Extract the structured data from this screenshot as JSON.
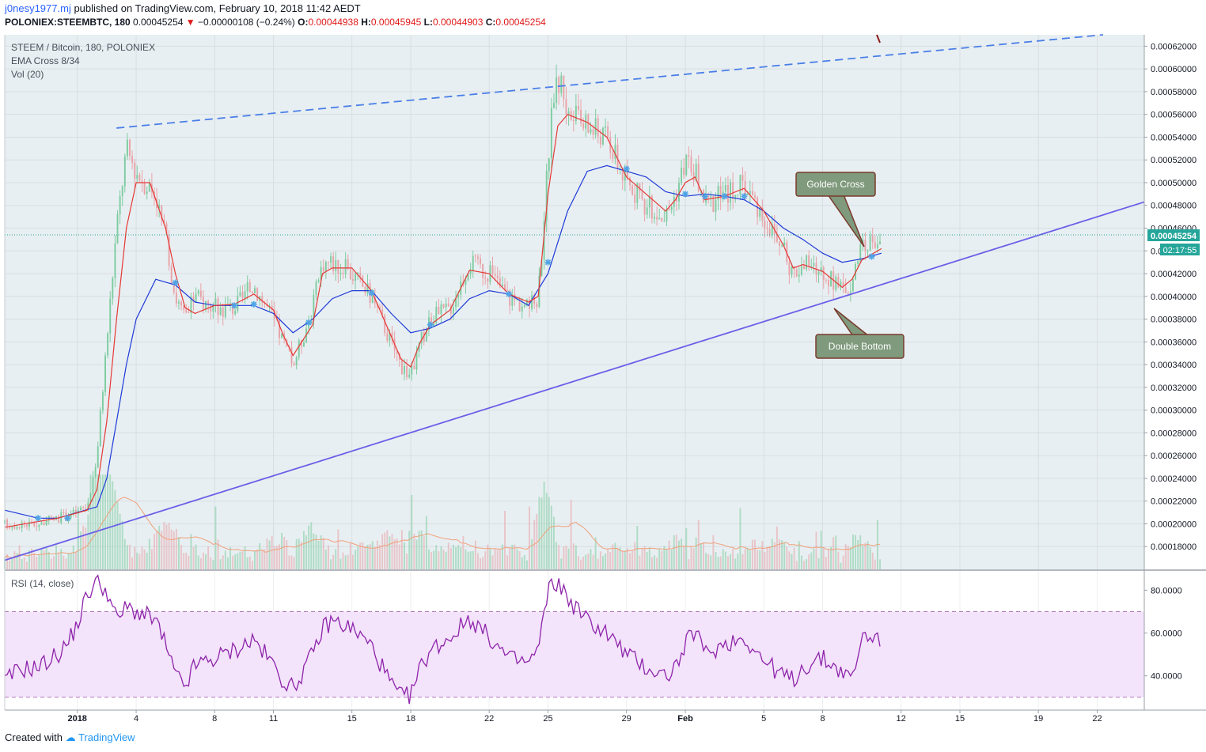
{
  "header": {
    "user": "j0nesy1977.mj",
    "published": "published on TradingView.com, February 10, 2018 11:42 AEDT",
    "symbol": "POLONIEX:STEEMBTC, 180",
    "last": "0.00045254",
    "change": "−0.00000108 (−0.24%)",
    "o_label": "O:",
    "o": "0.00044938",
    "h_label": "H:",
    "h": "0.00045945",
    "l_label": "L:",
    "l": "0.00044903",
    "c_label": "C:",
    "c": "0.00045254"
  },
  "legend": {
    "title": "STEEM / Bitcoin, 180, POLONIEX",
    "ema": "EMA Cross 8/34",
    "vol": "Vol (20)",
    "rsi": "RSI (14, close)"
  },
  "price_tag": "0.00045254",
  "time_tag": "02:17:55",
  "annotations": {
    "golden": "Golden Cross",
    "double": "Double Bottom"
  },
  "footer": {
    "created": "Created with",
    "brand": "TradingView"
  },
  "colors": {
    "up": "#7dcca0",
    "down": "#e8a3a8",
    "ema_fast": "#e53935",
    "ema_slow": "#1e3ad9",
    "rsi": "#8e24aa",
    "trend": "#6a5fe8",
    "callout": "#7f9a7c"
  },
  "chart_data": {
    "type": "candlestick",
    "price_axis": {
      "ylim": [
        0.00016,
        0.00063
      ],
      "ticks": [
        "0.00062000",
        "0.00060000",
        "0.00058000",
        "0.00056000",
        "0.00054000",
        "0.00052000",
        "0.00050000",
        "0.00048000",
        "0.00046000",
        "0.00044000",
        "0.00042000",
        "0.00040000",
        "0.00038000",
        "0.00036000",
        "0.00034000",
        "0.00032000",
        "0.00030000",
        "0.00028000",
        "0.00026000",
        "0.00024000",
        "0.00022000",
        "0.00020000",
        "0.00018000"
      ]
    },
    "rsi_axis": {
      "ylim": [
        24,
        89
      ],
      "ticks": [
        "80.0000",
        "60.0000",
        "40.0000"
      ],
      "band": [
        30,
        70
      ]
    },
    "x_axis": {
      "ticks": [
        "2018",
        "4",
        "8",
        "11",
        "15",
        "18",
        "22",
        "25",
        "29",
        "Feb",
        "5",
        "8",
        "12",
        "15",
        "19",
        "22"
      ],
      "tick_day": [
        1,
        4,
        8,
        11,
        15,
        18,
        22,
        25,
        29,
        32,
        36,
        39,
        43,
        46,
        50,
        53
      ],
      "xlim_day": [
        -2.7,
        55.4
      ]
    },
    "close_path": [
      [
        -2.7,
        0.0002
      ],
      [
        -1,
        0.0002
      ],
      [
        0,
        0.000205
      ],
      [
        1,
        0.00021
      ],
      [
        1.5,
        0.000215
      ],
      [
        2,
        0.00026
      ],
      [
        2.5,
        0.00036
      ],
      [
        3,
        0.00046
      ],
      [
        3.5,
        0.00053
      ],
      [
        4,
        0.00051
      ],
      [
        4.5,
        0.0005
      ],
      [
        5,
        0.00049
      ],
      [
        5.5,
        0.00045
      ],
      [
        6,
        0.0004
      ],
      [
        6.5,
        0.00038
      ],
      [
        7,
        0.0004
      ],
      [
        8,
        0.00039
      ],
      [
        9,
        0.00039
      ],
      [
        10,
        0.00041
      ],
      [
        11,
        0.00038
      ],
      [
        11.5,
        0.00036
      ],
      [
        12,
        0.00034
      ],
      [
        13,
        0.00039
      ],
      [
        13.5,
        0.00043
      ],
      [
        14,
        0.00043
      ],
      [
        15,
        0.00042
      ],
      [
        16,
        0.0004
      ],
      [
        17,
        0.00036
      ],
      [
        17.5,
        0.00034
      ],
      [
        18,
        0.00033
      ],
      [
        18.5,
        0.00036
      ],
      [
        19,
        0.00038
      ],
      [
        20,
        0.00039
      ],
      [
        21,
        0.00043
      ],
      [
        22,
        0.00042
      ],
      [
        23,
        0.0004
      ],
      [
        24,
        0.00039
      ],
      [
        24.5,
        0.0004
      ],
      [
        25,
        0.00052
      ],
      [
        25.3,
        0.00058
      ],
      [
        25.7,
        0.00059
      ],
      [
        26,
        0.00056
      ],
      [
        27,
        0.00055
      ],
      [
        28,
        0.00054
      ],
      [
        29,
        0.0005
      ],
      [
        30,
        0.00048
      ],
      [
        31,
        0.00047
      ],
      [
        31.5,
        0.00049
      ],
      [
        32,
        0.00052
      ],
      [
        32.5,
        0.00051
      ],
      [
        33,
        0.00048
      ],
      [
        34,
        0.00049
      ],
      [
        35,
        0.0005
      ],
      [
        36,
        0.00047
      ],
      [
        37,
        0.00044
      ],
      [
        37.5,
        0.00042
      ],
      [
        38,
        0.00043
      ],
      [
        39,
        0.00042
      ],
      [
        40,
        0.000405
      ],
      [
        40.5,
        0.000415
      ],
      [
        41,
        0.00044
      ],
      [
        41.5,
        0.00045
      ],
      [
        42,
        0.000452
      ]
    ],
    "series": [
      {
        "name": "EMA 8",
        "values": [
          [
            -2.7,
            0.000197
          ],
          [
            0,
            0.000205
          ],
          [
            1.5,
            0.000212
          ],
          [
            2,
            0.00023
          ],
          [
            2.5,
            0.00029
          ],
          [
            3,
            0.00038
          ],
          [
            3.5,
            0.00046
          ],
          [
            4,
            0.0005
          ],
          [
            4.7,
            0.0005
          ],
          [
            5.5,
            0.00046
          ],
          [
            6,
            0.00042
          ],
          [
            6.5,
            0.00039
          ],
          [
            7,
            0.000385
          ],
          [
            8,
            0.000392
          ],
          [
            9,
            0.000393
          ],
          [
            10,
            0.000402
          ],
          [
            11,
            0.000388
          ],
          [
            11.5,
            0.000366
          ],
          [
            12,
            0.000348
          ],
          [
            13,
            0.000375
          ],
          [
            13.5,
            0.00042
          ],
          [
            14,
            0.000425
          ],
          [
            15,
            0.000425
          ],
          [
            16,
            0.000405
          ],
          [
            17,
            0.000365
          ],
          [
            17.5,
            0.000345
          ],
          [
            18,
            0.000338
          ],
          [
            18.5,
            0.00036
          ],
          [
            19,
            0.000375
          ],
          [
            20,
            0.000388
          ],
          [
            21,
            0.000423
          ],
          [
            22,
            0.00042
          ],
          [
            23,
            0.000402
          ],
          [
            24,
            0.000395
          ],
          [
            24.5,
            0.0004
          ],
          [
            25,
            0.00049
          ],
          [
            25.5,
            0.00055
          ],
          [
            26,
            0.00056
          ],
          [
            27,
            0.000553
          ],
          [
            28,
            0.00054
          ],
          [
            29,
            0.000505
          ],
          [
            30,
            0.00049
          ],
          [
            31,
            0.000475
          ],
          [
            31.5,
            0.000485
          ],
          [
            32,
            0.0005
          ],
          [
            32.5,
            0.000505
          ],
          [
            33,
            0.000485
          ],
          [
            34,
            0.000488
          ],
          [
            35,
            0.000495
          ],
          [
            36,
            0.000475
          ],
          [
            37,
            0.000445
          ],
          [
            37.5,
            0.000425
          ],
          [
            38,
            0.000428
          ],
          [
            39,
            0.000422
          ],
          [
            40,
            0.000408
          ],
          [
            40.5,
            0.000415
          ],
          [
            41,
            0.000432
          ],
          [
            42,
            0.000442
          ]
        ]
      },
      {
        "name": "EMA 34",
        "values": [
          [
            -2.7,
            0.000212
          ],
          [
            -1,
            0.000205
          ],
          [
            0,
            0.000205
          ],
          [
            1,
            0.00021
          ],
          [
            2,
            0.000215
          ],
          [
            2.5,
            0.00024
          ],
          [
            3,
            0.00029
          ],
          [
            3.5,
            0.00034
          ],
          [
            4,
            0.00038
          ],
          [
            5,
            0.000415
          ],
          [
            6,
            0.00041
          ],
          [
            7,
            0.000395
          ],
          [
            8,
            0.000392
          ],
          [
            9,
            0.000392
          ],
          [
            10,
            0.000392
          ],
          [
            11,
            0.000385
          ],
          [
            12,
            0.000368
          ],
          [
            13,
            0.00038
          ],
          [
            14,
            0.000398
          ],
          [
            15,
            0.000405
          ],
          [
            16,
            0.000405
          ],
          [
            17,
            0.000385
          ],
          [
            18,
            0.000368
          ],
          [
            19,
            0.000372
          ],
          [
            20,
            0.00038
          ],
          [
            21,
            0.000398
          ],
          [
            22,
            0.000405
          ],
          [
            23,
            0.000402
          ],
          [
            24,
            0.000392
          ],
          [
            25,
            0.00042
          ],
          [
            26,
            0.000475
          ],
          [
            27,
            0.00051
          ],
          [
            28,
            0.000515
          ],
          [
            29,
            0.00051
          ],
          [
            30,
            0.000505
          ],
          [
            31,
            0.000492
          ],
          [
            32,
            0.000488
          ],
          [
            33,
            0.00049
          ],
          [
            34,
            0.000488
          ],
          [
            35,
            0.000485
          ],
          [
            36,
            0.000475
          ],
          [
            37,
            0.00046
          ],
          [
            38,
            0.00045
          ],
          [
            39,
            0.000438
          ],
          [
            40,
            0.00043
          ],
          [
            41,
            0.000433
          ],
          [
            42,
            0.000438
          ]
        ]
      }
    ],
    "cross_markers": [
      [
        -1,
        0.000205
      ],
      [
        0.5,
        0.000205
      ],
      [
        6,
        0.000412
      ],
      [
        9,
        0.000392
      ],
      [
        10,
        0.000393
      ],
      [
        12.8,
        0.000377
      ],
      [
        16,
        0.000403
      ],
      [
        19,
        0.000375
      ],
      [
        23,
        0.000402
      ],
      [
        25,
        0.00043
      ],
      [
        29,
        0.000512
      ],
      [
        32,
        0.00049
      ],
      [
        33,
        0.000488
      ],
      [
        34,
        0.000488
      ],
      [
        35,
        0.000488
      ],
      [
        41.5,
        0.000435
      ]
    ],
    "trend_lines": [
      {
        "style": "solid",
        "from": [
          -2.7,
          0.000168
        ],
        "to": [
          55.4,
          0.000483
        ]
      },
      {
        "style": "dashed",
        "from": [
          3,
          0.000548
        ],
        "to": [
          53.3,
          0.00063
        ]
      }
    ],
    "rsi_path": [
      [
        -2.7,
        37
      ],
      [
        -2,
        43
      ],
      [
        -1,
        44
      ],
      [
        0,
        50
      ],
      [
        0.5,
        55
      ],
      [
        1,
        64
      ],
      [
        1.5,
        78
      ],
      [
        2,
        84
      ],
      [
        2.5,
        80
      ],
      [
        3,
        66
      ],
      [
        3.5,
        72
      ],
      [
        4,
        70
      ],
      [
        5,
        66
      ],
      [
        5.5,
        54
      ],
      [
        6,
        40
      ],
      [
        6.5,
        35
      ],
      [
        7,
        45
      ],
      [
        8,
        48
      ],
      [
        9,
        52
      ],
      [
        10,
        57
      ],
      [
        11,
        45
      ],
      [
        11.5,
        38
      ],
      [
        12,
        34
      ],
      [
        13,
        50
      ],
      [
        13.5,
        62
      ],
      [
        14,
        66
      ],
      [
        15,
        62
      ],
      [
        16,
        54
      ],
      [
        17,
        36
      ],
      [
        17.5,
        30
      ],
      [
        18,
        31
      ],
      [
        18.5,
        44
      ],
      [
        19,
        52
      ],
      [
        20,
        58
      ],
      [
        21,
        67
      ],
      [
        22,
        58
      ],
      [
        23,
        48
      ],
      [
        24,
        46
      ],
      [
        24.5,
        52
      ],
      [
        25,
        80
      ],
      [
        25.5,
        84
      ],
      [
        26,
        76
      ],
      [
        27,
        66
      ],
      [
        28,
        60
      ],
      [
        29,
        50
      ],
      [
        30,
        44
      ],
      [
        31,
        40
      ],
      [
        31.5,
        44
      ],
      [
        32,
        54
      ],
      [
        32.5,
        62
      ],
      [
        33,
        50
      ],
      [
        34,
        55
      ],
      [
        35,
        58
      ],
      [
        36,
        47
      ],
      [
        37,
        40
      ],
      [
        37.5,
        38
      ],
      [
        38,
        44
      ],
      [
        39,
        48
      ],
      [
        40,
        42
      ],
      [
        40.5,
        38
      ],
      [
        41,
        58
      ],
      [
        41.5,
        59
      ],
      [
        42,
        57
      ]
    ]
  }
}
